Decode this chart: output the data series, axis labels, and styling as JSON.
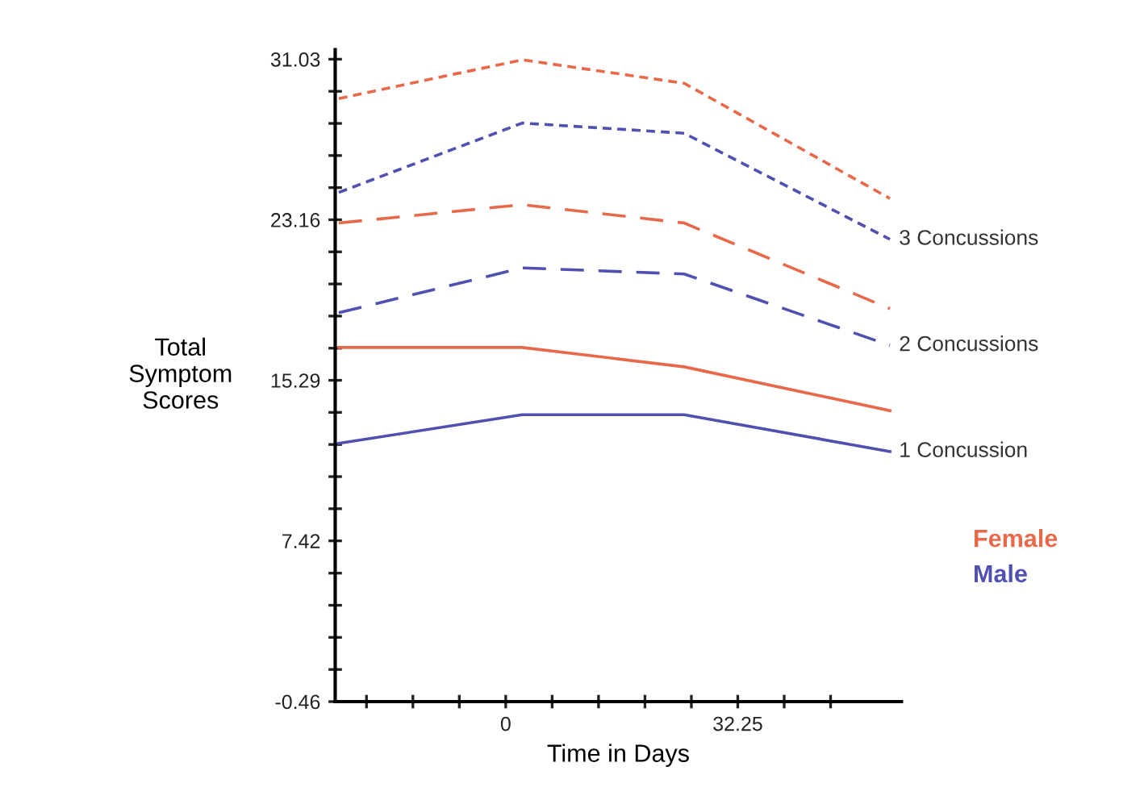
{
  "chart_data": {
    "type": "line",
    "xlabel": "Time in Days",
    "ylabel": "Total\nSymptom\nScores",
    "x": [
      -23.2,
      2.3,
      24.8,
      53.4
    ],
    "series": [
      {
        "name": "Female",
        "color": "#e8694a",
        "line_style": "dotted",
        "values": [
          29.1,
          31.0,
          29.85,
          24.2
        ]
      },
      {
        "name": "Male",
        "color": "#5050b0",
        "line_style": "dotted",
        "values": [
          24.5,
          27.9,
          27.4,
          22.2
        ]
      },
      {
        "color": "#e8694a",
        "line_style": "dashed",
        "values": [
          23.0,
          23.9,
          23.0,
          18.8
        ]
      },
      {
        "color": "#5050b0",
        "line_style": "dashed",
        "values": [
          18.6,
          20.8,
          20.5,
          17.0
        ]
      },
      {
        "color": "#e8694a",
        "line_style": "solid",
        "values": [
          16.9,
          16.9,
          15.95,
          13.8
        ]
      },
      {
        "color": "#5050b0",
        "line_style": "solid",
        "values": [
          12.2,
          13.6,
          13.6,
          11.8
        ]
      }
    ],
    "xlim": [
      -23.7,
      55
    ],
    "ylim": [
      -0.46,
      31.5
    ],
    "xticks": [
      {
        "value": -19.35,
        "label": null
      },
      {
        "value": -12.9,
        "label": null
      },
      {
        "value": -6.45,
        "label": null
      },
      0,
      {
        "value": 6.45,
        "label": null
      },
      {
        "value": 12.9,
        "label": null
      },
      {
        "value": 19.35,
        "label": null
      },
      {
        "value": 25.8,
        "label": null
      },
      32.25,
      {
        "value": 38.7,
        "label": null
      },
      {
        "value": 45.15,
        "label": null
      }
    ],
    "yticks": [
      -0.46,
      {
        "value": 1.114,
        "label": null
      },
      {
        "value": 2.688,
        "label": null
      },
      {
        "value": 4.262,
        "label": null
      },
      {
        "value": 5.836,
        "label": null
      },
      7.42,
      {
        "value": 8.994,
        "label": null
      },
      {
        "value": 10.568,
        "label": null
      },
      {
        "value": 12.142,
        "label": null
      },
      {
        "value": 13.716,
        "label": null
      },
      15.29,
      {
        "value": 16.864,
        "label": null
      },
      {
        "value": 18.438,
        "label": null
      },
      {
        "value": 20.012,
        "label": null
      },
      {
        "value": 21.586,
        "label": null
      },
      23.16,
      {
        "value": 24.734,
        "label": null
      },
      {
        "value": 26.308,
        "label": null
      },
      {
        "value": 27.882,
        "label": null
      },
      {
        "value": 29.456,
        "label": null
      },
      31.03
    ],
    "annotations": [
      "3 Concussions",
      "2 Concussions",
      "1 Concussion"
    ],
    "grid": false,
    "legend": "right",
    "marker": "none"
  }
}
